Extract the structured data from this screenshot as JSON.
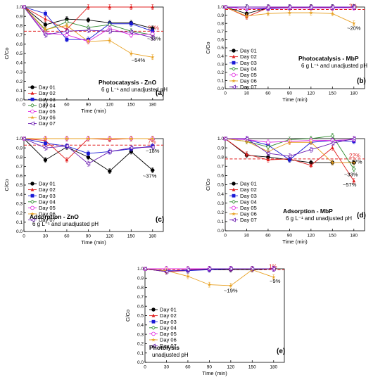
{
  "series_styles": [
    {
      "name": "Day 01",
      "color": "#000000",
      "marker": "circle-filled"
    },
    {
      "name": "Day 02",
      "color": "#e02020",
      "marker": "triangle-up-filled"
    },
    {
      "name": "Day 03",
      "color": "#1a1ad6",
      "marker": "square-filled"
    },
    {
      "name": "Day 04",
      "color": "#2e8b2e",
      "marker": "diamond-open"
    },
    {
      "name": "Day 05",
      "color": "#e020e0",
      "marker": "circle-open"
    },
    {
      "name": "Day 06",
      "color": "#e8a020",
      "marker": "star"
    },
    {
      "name": "Day 07",
      "color": "#6a1ab0",
      "marker": "triangle-left-open"
    }
  ],
  "chart_data": [
    {
      "panel": "(a)",
      "type": "line",
      "title": "Photocataysis - ZnO",
      "subtitle": "6 g L⁻¹ and unadjusted pH",
      "xlabel": "Time (min)",
      "ylabel": "C/Co",
      "x": [
        0,
        30,
        60,
        90,
        120,
        150,
        180
      ],
      "xticks": [
        "0",
        "30",
        "60",
        "90",
        "120",
        "150",
        "180"
      ],
      "yticks": [
        "0.0",
        "0.1",
        "0.2",
        "0.3",
        "0.4",
        "0.5",
        "0.6",
        "0.7",
        "0.8",
        "0.9",
        "1.0"
      ],
      "xlim": [
        0,
        195
      ],
      "ylim": [
        0,
        1.0
      ],
      "ref_line": {
        "y": 0.74,
        "label": "26%",
        "color": "#e02020"
      },
      "annotations": [
        {
          "text": "~33%",
          "x": 182,
          "y": 0.64
        },
        {
          "text": "~54%",
          "x": 160,
          "y": 0.41
        }
      ],
      "series": [
        {
          "name": "Day 01",
          "values": [
            1.0,
            0.81,
            0.87,
            0.86,
            0.83,
            0.83,
            0.77
          ]
        },
        {
          "name": "Day 02",
          "values": [
            1.0,
            0.87,
            0.76,
            1.0,
            1.0,
            1.0,
            1.0
          ]
        },
        {
          "name": "Day 03",
          "values": [
            1.0,
            0.93,
            0.65,
            0.65,
            0.82,
            0.82,
            0.74
          ]
        },
        {
          "name": "Day 04",
          "values": [
            1.0,
            0.75,
            0.84,
            0.78,
            0.81,
            0.74,
            0.7
          ]
        },
        {
          "name": "Day 05",
          "values": [
            1.0,
            0.72,
            0.7,
            0.63,
            0.77,
            0.7,
            0.71
          ]
        },
        {
          "name": "Day 06",
          "values": [
            1.0,
            0.76,
            0.8,
            0.63,
            0.64,
            0.5,
            0.46
          ]
        },
        {
          "name": "Day 07",
          "values": [
            1.0,
            0.7,
            0.74,
            0.75,
            0.74,
            0.73,
            0.67
          ]
        }
      ]
    },
    {
      "panel": "(b)",
      "type": "line",
      "title": "Photocatalysis - MbP",
      "subtitle": "6 g L⁻¹ and unadjusted pH",
      "xlabel": "Time (min)",
      "ylabel": "C/Co",
      "x": [
        0,
        30,
        60,
        90,
        120,
        150,
        180
      ],
      "xticks": [
        "0",
        "30",
        "60",
        "90",
        "120",
        "150",
        "180"
      ],
      "yticks": [
        "0.0",
        "0.1",
        "0.2",
        "0.3",
        "0.4",
        "0.5",
        "0.6",
        "0.7",
        "0.8",
        "0.9",
        "1.0"
      ],
      "xlim": [
        0,
        195
      ],
      "ylim": [
        0,
        1.0
      ],
      "ref_line": {
        "y": 0.97,
        "label": "3%",
        "color": "#e02020"
      },
      "annotations": [
        {
          "text": "~20%",
          "x": 180,
          "y": 0.72
        }
      ],
      "series": [
        {
          "name": "Day 01",
          "values": [
            1.0,
            0.92,
            0.99,
            0.99,
            1.0,
            1.0,
            1.0
          ]
        },
        {
          "name": "Day 02",
          "values": [
            1.0,
            0.88,
            0.99,
            0.99,
            1.0,
            0.99,
            1.0
          ]
        },
        {
          "name": "Day 03",
          "values": [
            1.0,
            0.98,
            0.98,
            0.99,
            0.99,
            0.99,
            1.0
          ]
        },
        {
          "name": "Day 04",
          "values": [
            1.0,
            1.0,
            1.0,
            1.0,
            1.0,
            1.0,
            1.0
          ]
        },
        {
          "name": "Day 05",
          "values": [
            1.0,
            0.98,
            0.99,
            0.99,
            0.99,
            0.99,
            0.99
          ]
        },
        {
          "name": "Day 06",
          "values": [
            1.0,
            0.89,
            0.92,
            0.93,
            0.93,
            0.92,
            0.8
          ]
        },
        {
          "name": "Day 07",
          "values": [
            1.0,
            1.0,
            1.0,
            1.0,
            1.0,
            1.0,
            1.0
          ]
        }
      ]
    },
    {
      "panel": "(c)",
      "type": "line",
      "title": "Adsorption - ZnO",
      "subtitle": "6 g L⁻¹ and unadjusted pH",
      "xlabel": "Time (min)",
      "ylabel": "C/Co",
      "x": [
        0,
        30,
        60,
        90,
        120,
        150,
        180
      ],
      "xticks": [
        "0",
        "30",
        "60",
        "90",
        "120",
        "150",
        "180"
      ],
      "yticks": [
        "0.0",
        "0.1",
        "0.2",
        "0.3",
        "0.4",
        "0.5",
        "0.6",
        "0.7",
        "0.8",
        "0.9",
        "1.0"
      ],
      "xlim": [
        0,
        195
      ],
      "ylim": [
        0,
        1.0
      ],
      "ref_line": {
        "y": 0.93,
        "label": "7%",
        "color": "#e02020"
      },
      "annotations": [
        {
          "text": "~18%",
          "x": 180,
          "y": 0.85
        },
        {
          "text": "~37%",
          "x": 176,
          "y": 0.58
        }
      ],
      "series": [
        {
          "name": "Day 01",
          "values": [
            1.0,
            0.77,
            0.91,
            0.8,
            0.65,
            0.86,
            0.66
          ]
        },
        {
          "name": "Day 02",
          "values": [
            1.0,
            0.98,
            0.77,
            1.0,
            0.99,
            1.0,
            1.0
          ]
        },
        {
          "name": "Day 03",
          "values": [
            1.0,
            0.95,
            0.92,
            0.84,
            0.86,
            0.89,
            0.92
          ]
        },
        {
          "name": "Day 04",
          "values": [
            1.0,
            1.0,
            1.0,
            1.0,
            1.0,
            1.0,
            1.0
          ]
        },
        {
          "name": "Day 05",
          "values": [
            1.0,
            1.0,
            1.0,
            1.0,
            1.0,
            1.0,
            1.0
          ]
        },
        {
          "name": "Day 06",
          "values": [
            1.0,
            1.0,
            1.0,
            1.0,
            1.0,
            1.0,
            1.0
          ]
        },
        {
          "name": "Day 07",
          "values": [
            1.0,
            0.9,
            0.92,
            0.73,
            0.86,
            0.9,
            0.91
          ]
        }
      ]
    },
    {
      "panel": "(d)",
      "type": "line",
      "title": "Adsorption - MbP",
      "subtitle": "6 g L⁻¹ and unadjusted pH",
      "xlabel": "Time (min)",
      "ylabel": "C/Co",
      "x": [
        0,
        30,
        60,
        90,
        120,
        150,
        180
      ],
      "xticks": [
        "0",
        "30",
        "60",
        "90",
        "120",
        "150",
        "180"
      ],
      "yticks": [
        "0.0",
        "0.1",
        "0.2",
        "0.3",
        "0.4",
        "0.5",
        "0.6",
        "0.7",
        "0.8",
        "0.9",
        "1.0"
      ],
      "xlim": [
        0,
        195
      ],
      "ylim": [
        0,
        1.0
      ],
      "ref_line": {
        "y": 0.78,
        "label": "22%",
        "color": "#e02020"
      },
      "annotations": [
        {
          "text": "~27%",
          "x": 182,
          "y": 0.73
        },
        {
          "text": "~33%",
          "x": 176,
          "y": 0.59
        },
        {
          "text": "~57%",
          "x": 174,
          "y": 0.48
        }
      ],
      "series": [
        {
          "name": "Day 01",
          "values": [
            1.0,
            0.82,
            0.8,
            0.77,
            0.74,
            0.74,
            0.74
          ]
        },
        {
          "name": "Day 02",
          "values": [
            1.0,
            0.83,
            0.77,
            0.78,
            0.71,
            0.9,
            0.54
          ]
        },
        {
          "name": "Day 03",
          "values": [
            1.0,
            0.99,
            0.93,
            0.77,
            0.96,
            0.98,
            0.97
          ]
        },
        {
          "name": "Day 04",
          "values": [
            1.0,
            0.97,
            0.91,
            0.99,
            1.0,
            1.03,
            0.67
          ]
        },
        {
          "name": "Day 05",
          "values": [
            1.0,
            0.99,
            0.96,
            0.97,
            0.98,
            0.98,
            0.99
          ]
        },
        {
          "name": "Day 06",
          "values": [
            1.0,
            0.97,
            0.86,
            0.96,
            0.96,
            0.74,
            0.74
          ]
        },
        {
          "name": "Day 07",
          "values": [
            1.0,
            1.0,
            0.84,
            0.81,
            0.88,
            0.95,
            1.0
          ]
        }
      ]
    },
    {
      "panel": "(e)",
      "type": "line",
      "title": "Photolysis",
      "subtitle": "unadjusted pH",
      "xlabel": "Time (min)",
      "ylabel": "C/Co",
      "x": [
        0,
        30,
        60,
        90,
        120,
        150,
        180
      ],
      "xticks": [
        "0",
        "30",
        "60",
        "90",
        "120",
        "150",
        "180"
      ],
      "yticks": [
        "0.0",
        "0.1",
        "0.2",
        "0.3",
        "0.4",
        "0.5",
        "0.6",
        "0.7",
        "0.8",
        "0.9",
        "1.0"
      ],
      "xlim": [
        0,
        195
      ],
      "ylim": [
        0,
        1.0
      ],
      "ref_line": {
        "y": 0.99,
        "label": "1%",
        "color": "#e02020"
      },
      "annotations": [
        {
          "text": "~19%",
          "x": 120,
          "y": 0.75
        },
        {
          "text": "~9%",
          "x": 182,
          "y": 0.85
        }
      ],
      "series": [
        {
          "name": "Day 01",
          "values": [
            1.0,
            0.97,
            0.99,
            0.99,
            0.99,
            0.99,
            1.0
          ]
        },
        {
          "name": "Day 02",
          "values": [
            1.0,
            0.97,
            0.98,
            1.0,
            1.0,
            1.0,
            1.0
          ]
        },
        {
          "name": "Day 03",
          "values": [
            1.0,
            0.98,
            0.98,
            0.99,
            1.0,
            1.0,
            1.0
          ]
        },
        {
          "name": "Day 04",
          "values": [
            1.0,
            1.0,
            1.0,
            1.0,
            1.0,
            1.0,
            1.0
          ]
        },
        {
          "name": "Day 05",
          "values": [
            1.0,
            1.0,
            1.0,
            1.0,
            1.0,
            1.0,
            1.0
          ]
        },
        {
          "name": "Day 06",
          "values": [
            1.0,
            0.98,
            0.92,
            0.83,
            0.82,
            0.99,
            0.91
          ]
        },
        {
          "name": "Day 07",
          "values": [
            1.0,
            0.97,
            0.99,
            1.0,
            1.0,
            1.0,
            1.0
          ]
        }
      ]
    }
  ]
}
